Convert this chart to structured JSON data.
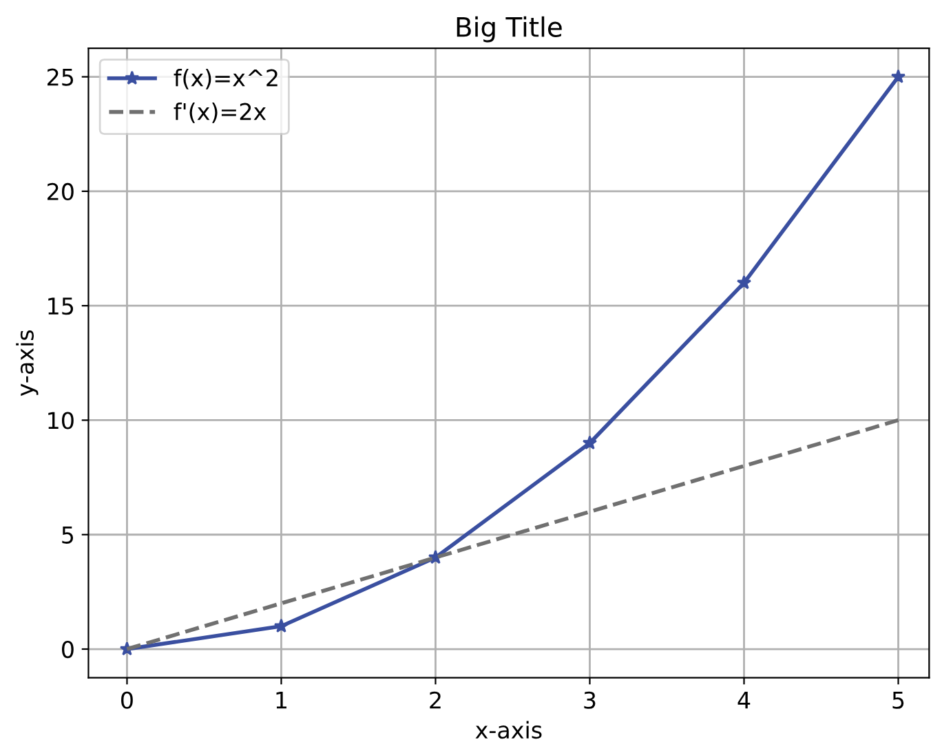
{
  "chart_data": {
    "type": "line",
    "title": "Big Title",
    "xlabel": "x-axis",
    "ylabel": "y-axis",
    "x": [
      0,
      1,
      2,
      3,
      4,
      5
    ],
    "series": [
      {
        "name": "f(x)=x^2",
        "color": "#3a4fa0",
        "values": [
          0,
          1,
          4,
          9,
          16,
          25
        ],
        "marker": "star",
        "line_style": "solid"
      },
      {
        "name": "f'(x)=2x",
        "color": "#707070",
        "values": [
          0,
          2,
          4,
          6,
          8,
          10
        ],
        "marker": "none",
        "line_style": "dashed"
      }
    ],
    "xlim": [
      -0.25,
      5.2
    ],
    "ylim": [
      -1.25,
      26.25
    ],
    "xticks": [
      0,
      1,
      2,
      3,
      4,
      5
    ],
    "yticks": [
      0,
      5,
      10,
      15,
      20,
      25
    ],
    "grid": true,
    "legend": "top left"
  }
}
